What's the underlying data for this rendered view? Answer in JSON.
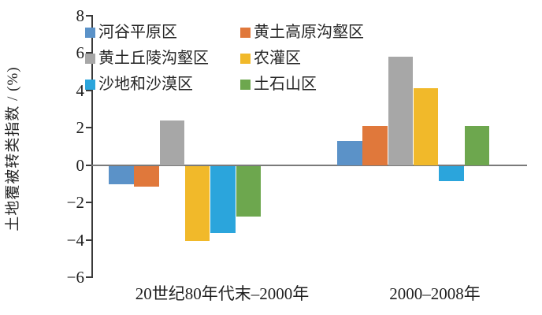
{
  "chart_data": {
    "type": "bar",
    "title": "",
    "ylabel": "土地覆被转类指数 / (%)",
    "xlabel": "",
    "categories": [
      "20世纪80年代末–2000年",
      "2000–2008年"
    ],
    "series": [
      {
        "name": "河谷平原区",
        "color": "#5B92C8",
        "values": [
          -1.0,
          1.3
        ]
      },
      {
        "name": "黄土高原沟壑区",
        "color": "#E0783B",
        "values": [
          -1.1,
          2.1
        ]
      },
      {
        "name": "黄土丘陵沟壑区",
        "color": "#A7A7A7",
        "values": [
          2.4,
          5.8
        ]
      },
      {
        "name": "农灌区",
        "color": "#F1B92A",
        "values": [
          -4.0,
          4.1
        ]
      },
      {
        "name": "沙地和沙漠区",
        "color": "#2BA5DC",
        "values": [
          -3.6,
          -0.8
        ]
      },
      {
        "name": "土石山区",
        "color": "#6DA74E",
        "values": [
          -2.7,
          2.1
        ]
      }
    ],
    "ylim": [
      -6,
      8
    ],
    "yticks": [
      8,
      6,
      4,
      2,
      0,
      -2,
      -4,
      -6
    ],
    "grid": false,
    "legend_position": "top-left-inside",
    "axis_color": "#3a3a3a",
    "zero_line_color": "#7a7a7a"
  }
}
